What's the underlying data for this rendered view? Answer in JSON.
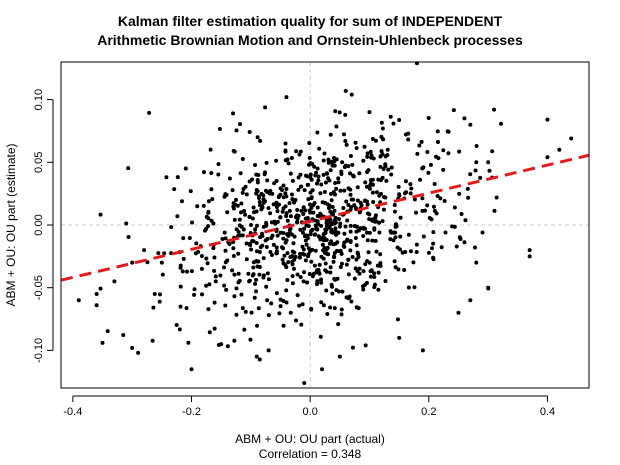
{
  "chart_data": {
    "type": "scatter",
    "title_line1": "Kalman filter estimation quality for sum of INDEPENDENT",
    "title_line2": "Arithmetic Brownian Motion and Ornstein-Uhlenbeck processes",
    "xlabel": "ABM + OU: OU part (actual)",
    "ylabel": "ABM + OU: OU part (estimate)",
    "annotation": "Correlation = 0.348",
    "xlim": [
      -0.42,
      0.47
    ],
    "ylim": [
      -0.13,
      0.13
    ],
    "x_ticks": [
      -0.4,
      -0.2,
      0.0,
      0.2,
      0.4
    ],
    "x_tick_labels": [
      "-0.4",
      "-0.2",
      "0.0",
      "0.2",
      "0.4"
    ],
    "y_ticks": [
      -0.1,
      -0.05,
      0.0,
      0.05,
      0.1
    ],
    "y_tick_labels": [
      "-0.10",
      "-0.05",
      "0.00",
      "0.05",
      "0.10"
    ],
    "reference_lines": {
      "x": 0,
      "y": 0,
      "color": "#cccccc",
      "style": "dashed"
    },
    "fit_line": {
      "intercept": 0.003,
      "slope": 0.112,
      "color": "#e31a1c",
      "style": "dashed"
    },
    "point_color": "#000000",
    "generated_point_count": 950,
    "points": [
      [
        0.18,
        0.129
      ],
      [
        -0.04,
        0.102
      ],
      [
        0.06,
        0.107
      ],
      [
        0.07,
        0.104
      ],
      [
        -0.13,
        0.089
      ],
      [
        0.4,
        0.084
      ],
      [
        0.44,
        0.069
      ],
      [
        0.31,
        0.092
      ],
      [
        0.37,
        -0.02
      ],
      [
        0.37,
        -0.025
      ],
      [
        0.4,
        0.054
      ],
      [
        0.42,
        0.06
      ],
      [
        -0.39,
        -0.06
      ],
      [
        -0.36,
        -0.064
      ],
      [
        -0.35,
        -0.094
      ],
      [
        -0.3,
        -0.098
      ],
      [
        -0.29,
        -0.102
      ],
      [
        -0.2,
        -0.115
      ],
      [
        -0.01,
        -0.126
      ],
      [
        0.02,
        -0.115
      ],
      [
        -0.3,
        -0.03
      ],
      [
        -0.28,
        -0.02
      ],
      [
        -0.25,
        -0.03
      ],
      [
        -0.33,
        -0.045
      ],
      [
        -0.36,
        -0.055
      ],
      [
        -0.09,
        -0.105
      ],
      [
        -0.07,
        -0.1
      ],
      [
        0.05,
        -0.105
      ],
      [
        0.19,
        -0.1
      ],
      [
        0.25,
        -0.07
      ],
      [
        0.27,
        -0.06
      ],
      [
        0.28,
        -0.03
      ],
      [
        0.3,
        -0.05
      ],
      [
        0.26,
        0.085
      ],
      [
        0.27,
        0.08
      ],
      [
        0.28,
        0.05
      ],
      [
        0.3,
        0.05
      ],
      [
        0.15,
        -0.09
      ],
      [
        -0.15,
        -0.095
      ],
      [
        0.1,
        0.09
      ]
    ]
  }
}
